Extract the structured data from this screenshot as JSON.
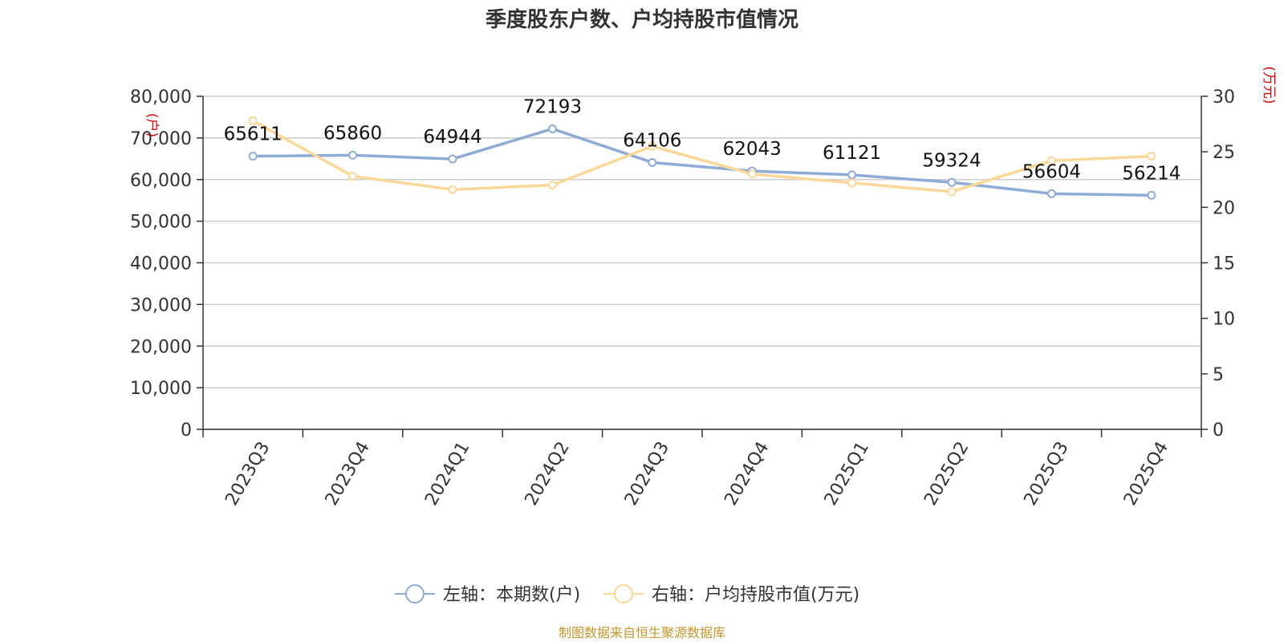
{
  "chart_data": {
    "type": "line",
    "title": "季度股东户数、户均持股市值情况",
    "categories": [
      "2023Q3",
      "2023Q4",
      "2024Q1",
      "2024Q2",
      "2024Q3",
      "2024Q4",
      "2025Q1",
      "2025Q2",
      "2025Q3",
      "2025Q4"
    ],
    "left_axis": {
      "unit": "(户)",
      "ylim": [
        0,
        80000
      ],
      "ticks": [
        "0",
        "10,000",
        "20,000",
        "30,000",
        "40,000",
        "50,000",
        "60,000",
        "70,000",
        "80,000"
      ]
    },
    "right_axis": {
      "unit": "(万元)",
      "ylim": [
        0,
        30
      ],
      "ticks": [
        "0",
        "5",
        "10",
        "15",
        "20",
        "25",
        "30"
      ]
    },
    "grid": true,
    "legend_position": "bottom-center",
    "series": [
      {
        "name": "左轴：本期数(户)",
        "axis": "left",
        "color": "#8eabd8",
        "values": [
          65611,
          65860,
          64944,
          72193,
          64106,
          62043,
          61121,
          59324,
          56604,
          56214
        ],
        "data_labels": [
          "65611",
          "65860",
          "64944",
          "72193",
          "64106",
          "62043",
          "61121",
          "59324",
          "56604",
          "56214"
        ]
      },
      {
        "name": "右轴：户均持股市值(万元)",
        "axis": "right",
        "color": "#fbd898",
        "values": [
          27.8,
          22.8,
          21.6,
          22.0,
          25.5,
          23.0,
          22.2,
          21.4,
          24.2,
          24.6
        ]
      }
    ],
    "source": "制图数据来自恒生聚源数据库"
  }
}
